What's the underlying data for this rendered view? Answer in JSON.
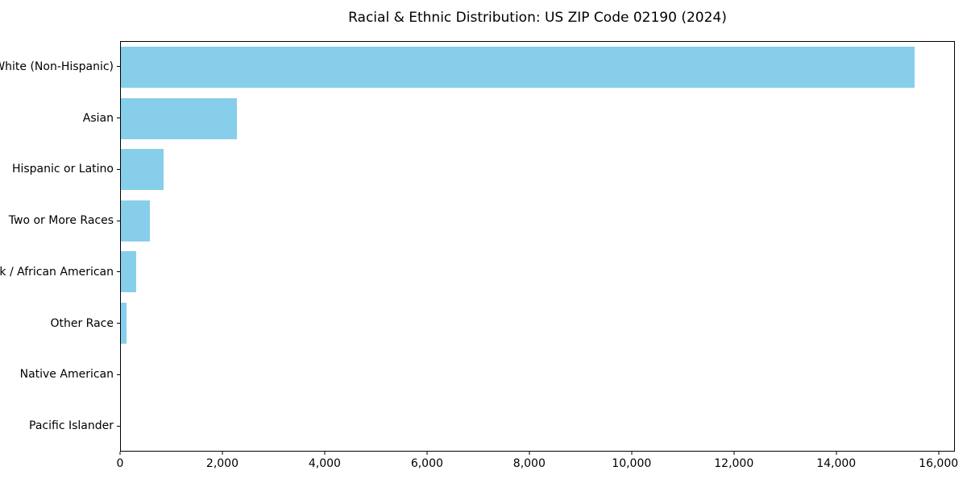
{
  "figure": {
    "background": "#ffffff",
    "text_color": "#000000",
    "axis_color": "#000000"
  },
  "chart_data": {
    "type": "bar",
    "orientation": "horizontal",
    "title": "Racial & Ethnic Distribution: US ZIP Code 02190 (2024)",
    "xlabel": "",
    "ylabel": "",
    "categories": [
      "White (Non-Hispanic)",
      "Asian",
      "Hispanic or Latino",
      "Two or More Races",
      "Black / African American",
      "Other Race",
      "Native American",
      "Pacific Islander"
    ],
    "values": [
      15550,
      2270,
      830,
      570,
      300,
      110,
      0,
      0
    ],
    "bar_color": "#87CEEB",
    "xlim": [
      0,
      16320
    ],
    "x_ticks": [
      0,
      2000,
      4000,
      6000,
      8000,
      10000,
      12000,
      14000,
      16000
    ],
    "x_tick_labels": [
      "0",
      "2,000",
      "4,000",
      "6,000",
      "8,000",
      "10,000",
      "12,000",
      "14,000",
      "16,000"
    ],
    "grid": false,
    "legend": null
  }
}
